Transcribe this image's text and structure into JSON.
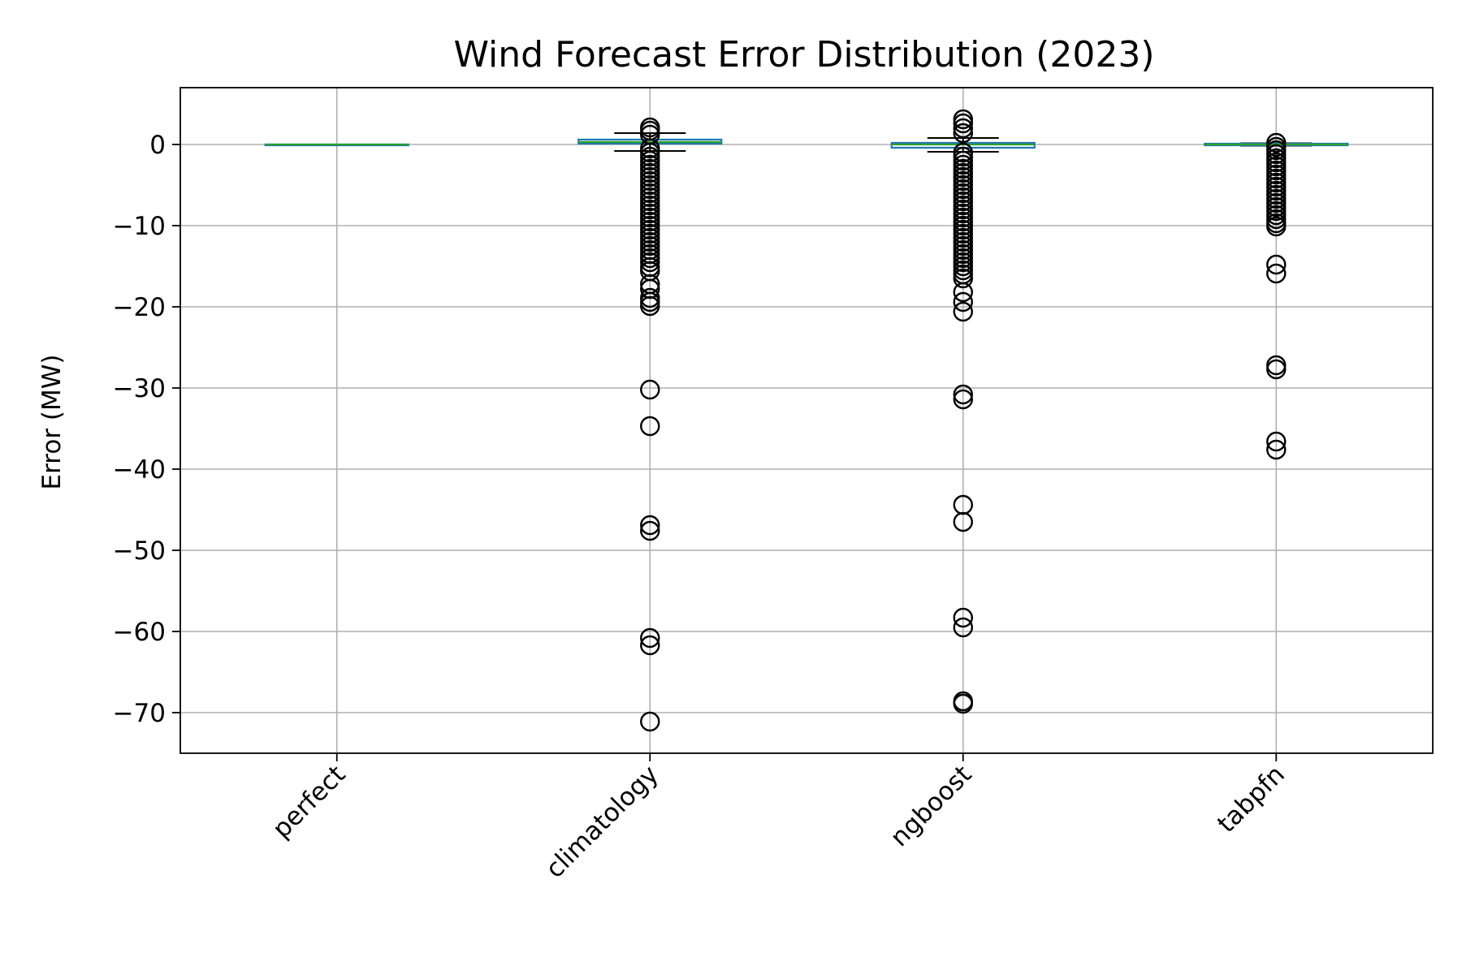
{
  "chart_data": {
    "type": "box",
    "title": "Wind Forecast Error Distribution (2023)",
    "xlabel": "",
    "ylabel": "Error (MW)",
    "ylim": [
      -75,
      7
    ],
    "yticks": [
      0,
      -10,
      -20,
      -30,
      -40,
      -50,
      -60,
      -70
    ],
    "ytick_labels": [
      "0",
      "−10",
      "−20",
      "−30",
      "−40",
      "−50",
      "−60",
      "−70"
    ],
    "grid": true,
    "box_color": "#1f77b4",
    "median_color": "#2ca02c",
    "categories": [
      "perfect",
      "climatology",
      "ngboost",
      "tabpfn"
    ],
    "boxes": [
      {
        "category": "perfect",
        "q1": 0,
        "median": 0,
        "q3": 0,
        "whisker_low": 0,
        "whisker_high": 0,
        "fliers": []
      },
      {
        "category": "climatology",
        "q1": 0.1,
        "median": 0.3,
        "q3": 0.6,
        "whisker_low": -0.8,
        "whisker_high": 1.4,
        "fliers": [
          2.1,
          1.7,
          1.2,
          -0.5,
          -1.0,
          -1.5,
          -2.0,
          -2.5,
          -3.0,
          -3.5,
          -4.0,
          -4.5,
          -5.0,
          -5.5,
          -6.0,
          -6.5,
          -7.0,
          -7.5,
          -8.0,
          -8.5,
          -9.0,
          -9.5,
          -10.0,
          -10.5,
          -11.0,
          -11.5,
          -12.0,
          -12.5,
          -13.0,
          -13.5,
          -14.0,
          -14.5,
          -15.1,
          -15.6,
          -17.2,
          -17.8,
          -18.9,
          -19.4,
          -19.9,
          -30.2,
          -34.7,
          -46.9,
          -47.6,
          -60.8,
          -61.7,
          -71.1
        ]
      },
      {
        "category": "ngboost",
        "q1": -0.4,
        "median": 0.0,
        "q3": 0.2,
        "whisker_low": -0.9,
        "whisker_high": 0.8,
        "fliers": [
          3.1,
          2.6,
          2.0,
          1.4,
          -1.0,
          -1.5,
          -2.0,
          -2.5,
          -3.0,
          -3.5,
          -4.0,
          -4.5,
          -5.0,
          -5.5,
          -6.0,
          -6.5,
          -7.0,
          -7.5,
          -8.0,
          -8.5,
          -9.0,
          -9.5,
          -10.0,
          -10.5,
          -11.0,
          -11.5,
          -12.0,
          -12.5,
          -13.0,
          -13.5,
          -14.0,
          -14.5,
          -15.0,
          -15.5,
          -16.0,
          -16.5,
          -18.2,
          -19.4,
          -20.6,
          -30.8,
          -31.4,
          -44.4,
          -46.5,
          -58.3,
          -59.5,
          -68.6,
          -68.9
        ]
      },
      {
        "category": "tabpfn",
        "q1": -0.1,
        "median": 0.0,
        "q3": 0.1,
        "whisker_low": -0.15,
        "whisker_high": 0.15,
        "fliers": [
          0.2,
          -0.3,
          -0.7,
          -1.2,
          -1.7,
          -2.2,
          -2.7,
          -3.2,
          -3.7,
          -4.2,
          -4.7,
          -5.2,
          -5.7,
          -6.2,
          -6.7,
          -7.2,
          -7.7,
          -8.2,
          -8.7,
          -9.2,
          -9.7,
          -10.1,
          -14.8,
          -15.9,
          -27.2,
          -27.7,
          -36.6,
          -37.6
        ]
      }
    ]
  }
}
